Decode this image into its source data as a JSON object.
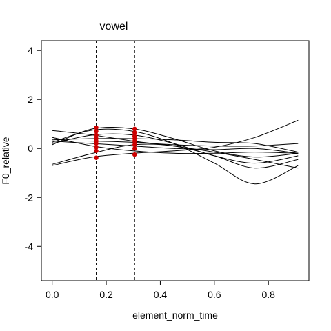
{
  "chart_data": {
    "type": "line",
    "title": "vowel",
    "xlabel": "element_norm_time",
    "ylabel": "F0_relative",
    "xlim": [
      -0.04,
      0.95
    ],
    "ylim": [
      -5.4,
      4.4
    ],
    "x_ticks": [
      "0.0",
      "0.2",
      "0.4",
      "0.6",
      "0.8"
    ],
    "x_tick_values": [
      0,
      0.2,
      0.4,
      0.6,
      0.8
    ],
    "y_ticks": [
      "4",
      "2",
      "0",
      "-2",
      "-4"
    ],
    "y_tick_values": [
      4,
      2,
      0,
      -2,
      -4
    ],
    "grid": false,
    "vlines": [
      0.163,
      0.305
    ],
    "series": [
      {
        "x": [
          0,
          0.15,
          0.3,
          0.45,
          0.6,
          0.75,
          0.91
        ],
        "values": [
          0.73,
          0.55,
          0.3,
          0.1,
          -0.15,
          -0.45,
          -0.8
        ]
      },
      {
        "x": [
          0,
          0.15,
          0.3,
          0.45,
          0.6,
          0.75,
          0.91
        ],
        "values": [
          0.25,
          0.75,
          0.7,
          0.2,
          -0.6,
          -1.45,
          -0.7
        ]
      },
      {
        "x": [
          0,
          0.15,
          0.3,
          0.45,
          0.6,
          0.75,
          0.91
        ],
        "values": [
          -0.7,
          -0.35,
          -0.2,
          -0.1,
          0.05,
          0.45,
          1.15
        ]
      },
      {
        "x": [
          0,
          0.15,
          0.3,
          0.45,
          0.6,
          0.75,
          0.91
        ],
        "values": [
          0.2,
          0.55,
          0.55,
          0.2,
          -0.3,
          -0.6,
          -0.3
        ]
      },
      {
        "x": [
          0,
          0.15,
          0.3,
          0.45,
          0.6,
          0.75,
          0.91
        ],
        "values": [
          0.35,
          0.4,
          0.4,
          0.35,
          0.25,
          0.2,
          -0.15
        ]
      },
      {
        "x": [
          0,
          0.15,
          0.3,
          0.45,
          0.6,
          0.75,
          0.91
        ],
        "values": [
          0.3,
          0.2,
          0.1,
          0.0,
          -0.05,
          0.0,
          -0.2
        ]
      },
      {
        "x": [
          0,
          0.15,
          0.3,
          0.45,
          0.6,
          0.75,
          0.91
        ],
        "values": [
          0.45,
          0.1,
          -0.1,
          -0.2,
          -0.2,
          -0.15,
          -0.2
        ]
      },
      {
        "x": [
          0,
          0.15,
          0.3,
          0.45,
          0.6,
          0.75,
          0.91
        ],
        "values": [
          0.15,
          0.8,
          0.8,
          0.4,
          -0.1,
          -0.35,
          -0.2
        ]
      },
      {
        "x": [
          0,
          0.15,
          0.3,
          0.45,
          0.6,
          0.75,
          0.91
        ],
        "values": [
          -0.65,
          -0.2,
          0.15,
          0.1,
          -0.3,
          -0.8,
          -0.45
        ]
      },
      {
        "x": [
          0,
          0.15,
          0.3,
          0.45,
          0.6,
          0.75,
          0.91
        ],
        "values": [
          0.3,
          0.3,
          0.25,
          0.15,
          0.1,
          0.1,
          0.2
        ]
      }
    ],
    "points": [
      {
        "x": 0.163,
        "y": 0.85
      },
      {
        "x": 0.163,
        "y": 0.7
      },
      {
        "x": 0.163,
        "y": 0.55
      },
      {
        "x": 0.163,
        "y": 0.4
      },
      {
        "x": 0.163,
        "y": 0.3
      },
      {
        "x": 0.163,
        "y": 0.2
      },
      {
        "x": 0.163,
        "y": 0.05
      },
      {
        "x": 0.163,
        "y": -0.1
      },
      {
        "x": 0.163,
        "y": -0.38
      },
      {
        "x": 0.305,
        "y": 0.8
      },
      {
        "x": 0.305,
        "y": 0.65
      },
      {
        "x": 0.305,
        "y": 0.5
      },
      {
        "x": 0.305,
        "y": 0.4
      },
      {
        "x": 0.305,
        "y": 0.3
      },
      {
        "x": 0.305,
        "y": 0.15
      },
      {
        "x": 0.305,
        "y": 0.0
      },
      {
        "x": 0.305,
        "y": -0.25
      }
    ],
    "colors": {
      "lines": "#000000",
      "points": "#cc0000",
      "vlines": "#000000"
    }
  }
}
